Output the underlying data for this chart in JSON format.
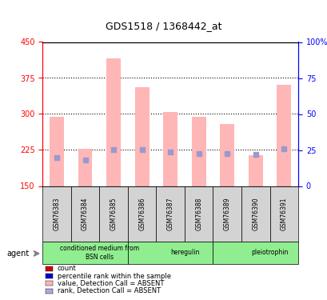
{
  "title": "GDS1518 / 1368442_at",
  "samples": [
    "GSM76383",
    "GSM76384",
    "GSM76385",
    "GSM76386",
    "GSM76387",
    "GSM76388",
    "GSM76389",
    "GSM76390",
    "GSM76391"
  ],
  "values": [
    295,
    228,
    415,
    355,
    305,
    295,
    280,
    215,
    360
  ],
  "ranks": [
    210,
    205,
    225,
    225,
    220,
    218,
    218,
    215,
    228
  ],
  "ymin": 150,
  "ymax": 450,
  "yticks": [
    150,
    225,
    300,
    375,
    450
  ],
  "right_yticks": [
    0,
    25,
    50,
    75,
    100
  ],
  "bar_color": "#FFB6B6",
  "rank_color": "#9999CC",
  "groups": [
    {
      "label": "conditioned medium from\nBSN cells",
      "start": 0,
      "end": 3,
      "color": "#90EE90"
    },
    {
      "label": "heregulin",
      "start": 3,
      "end": 6,
      "color": "#90EE90"
    },
    {
      "label": "pleiotrophin",
      "start": 6,
      "end": 9,
      "color": "#90EE90"
    }
  ],
  "agent_label": "agent",
  "legend_items": [
    {
      "color": "#CC0000",
      "label": "count"
    },
    {
      "color": "#0000CC",
      "label": "percentile rank within the sample"
    },
    {
      "color": "#FFB6B6",
      "label": "value, Detection Call = ABSENT"
    },
    {
      "color": "#AAAADD",
      "label": "rank, Detection Call = ABSENT"
    }
  ]
}
